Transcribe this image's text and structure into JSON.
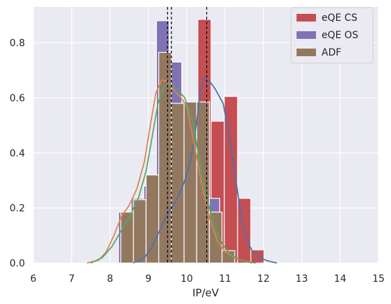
{
  "chart_data": {
    "type": "histogram",
    "title": "",
    "xlabel": "IP/eV",
    "ylabel": "",
    "xlim": [
      6,
      15
    ],
    "ylim": [
      0,
      0.93
    ],
    "xticks": [
      "6",
      "7",
      "8",
      "9",
      "10",
      "11",
      "12",
      "13",
      "14",
      "15"
    ],
    "yticks": [
      "0.0",
      "0.2",
      "0.4",
      "0.6",
      "0.8"
    ],
    "grid": true,
    "legend_position": "top-right",
    "series": [
      {
        "name": "eQE CS",
        "color": "#c44e52",
        "bin_width": 0.345,
        "bins": [
          {
            "x0": 9.6,
            "height": 0.09
          },
          {
            "x0": 9.945,
            "height": 0.28
          },
          {
            "x0": 10.29,
            "height": 0.885
          },
          {
            "x0": 10.635,
            "height": 0.515
          },
          {
            "x0": 10.98,
            "height": 0.605
          },
          {
            "x0": 11.325,
            "height": 0.235
          },
          {
            "x0": 11.67,
            "height": 0.048
          }
        ]
      },
      {
        "name": "eQE OS",
        "color": "#8172b3",
        "bin_width": 0.33,
        "bins": [
          {
            "x0": 8.22,
            "height": 0.185
          },
          {
            "x0": 8.55,
            "height": 0.235
          },
          {
            "x0": 8.88,
            "height": 0.28
          },
          {
            "x0": 9.21,
            "height": 0.88
          },
          {
            "x0": 9.54,
            "height": 0.73
          },
          {
            "x0": 9.87,
            "height": 0.585
          },
          {
            "x0": 10.2,
            "height": 0.555
          },
          {
            "x0": 10.53,
            "height": 0.235
          }
        ]
      },
      {
        "name": "ADF",
        "color": "#937860",
        "bin_width": 0.33,
        "bins": [
          {
            "x0": 8.28,
            "height": 0.185
          },
          {
            "x0": 8.61,
            "height": 0.23
          },
          {
            "x0": 8.94,
            "height": 0.32
          },
          {
            "x0": 9.27,
            "height": 0.765
          },
          {
            "x0": 9.6,
            "height": 0.58
          },
          {
            "x0": 9.93,
            "height": 0.585
          },
          {
            "x0": 10.26,
            "height": 0.585
          },
          {
            "x0": 10.59,
            "height": 0.185
          },
          {
            "x0": 10.92,
            "height": 0.045
          }
        ]
      }
    ],
    "kde_curves": [
      {
        "color": "#4c72b0",
        "points": [
          [
            8.6,
            0.0
          ],
          [
            8.9,
            0.02
          ],
          [
            9.1,
            0.06
          ],
          [
            9.3,
            0.12
          ],
          [
            9.5,
            0.18
          ],
          [
            9.7,
            0.22
          ],
          [
            9.9,
            0.28
          ],
          [
            10.1,
            0.37
          ],
          [
            10.25,
            0.5
          ],
          [
            10.35,
            0.62
          ],
          [
            10.45,
            0.67
          ],
          [
            10.6,
            0.66
          ],
          [
            10.75,
            0.63
          ],
          [
            10.95,
            0.58
          ],
          [
            11.1,
            0.47
          ],
          [
            11.25,
            0.33
          ],
          [
            11.4,
            0.19
          ],
          [
            11.55,
            0.09
          ],
          [
            11.7,
            0.045
          ],
          [
            11.9,
            0.02
          ],
          [
            12.1,
            0.008
          ],
          [
            12.35,
            0.0
          ]
        ]
      },
      {
        "color": "#dd8452",
        "points": [
          [
            7.4,
            0.0
          ],
          [
            7.7,
            0.01
          ],
          [
            7.9,
            0.04
          ],
          [
            8.1,
            0.1
          ],
          [
            8.3,
            0.17
          ],
          [
            8.5,
            0.21
          ],
          [
            8.7,
            0.27
          ],
          [
            8.9,
            0.37
          ],
          [
            9.05,
            0.5
          ],
          [
            9.2,
            0.62
          ],
          [
            9.35,
            0.665
          ],
          [
            9.5,
            0.66
          ],
          [
            9.65,
            0.63
          ],
          [
            9.85,
            0.6
          ],
          [
            10.0,
            0.57
          ],
          [
            10.2,
            0.43
          ],
          [
            10.4,
            0.28
          ],
          [
            10.6,
            0.16
          ],
          [
            10.8,
            0.08
          ],
          [
            11.0,
            0.04
          ],
          [
            11.3,
            0.015
          ],
          [
            11.7,
            0.0
          ]
        ]
      },
      {
        "color": "#55a868",
        "points": [
          [
            7.5,
            0.0
          ],
          [
            7.8,
            0.02
          ],
          [
            8.05,
            0.06
          ],
          [
            8.3,
            0.12
          ],
          [
            8.55,
            0.18
          ],
          [
            8.75,
            0.24
          ],
          [
            8.95,
            0.34
          ],
          [
            9.1,
            0.46
          ],
          [
            9.25,
            0.58
          ],
          [
            9.4,
            0.64
          ],
          [
            9.55,
            0.65
          ],
          [
            9.75,
            0.63
          ],
          [
            9.95,
            0.6
          ],
          [
            10.15,
            0.52
          ],
          [
            10.35,
            0.36
          ],
          [
            10.55,
            0.22
          ],
          [
            10.75,
            0.12
          ],
          [
            10.95,
            0.065
          ],
          [
            11.15,
            0.03
          ],
          [
            11.4,
            0.01
          ],
          [
            11.8,
            0.0
          ]
        ]
      }
    ],
    "vlines": [
      9.5,
      9.6,
      10.52
    ]
  }
}
